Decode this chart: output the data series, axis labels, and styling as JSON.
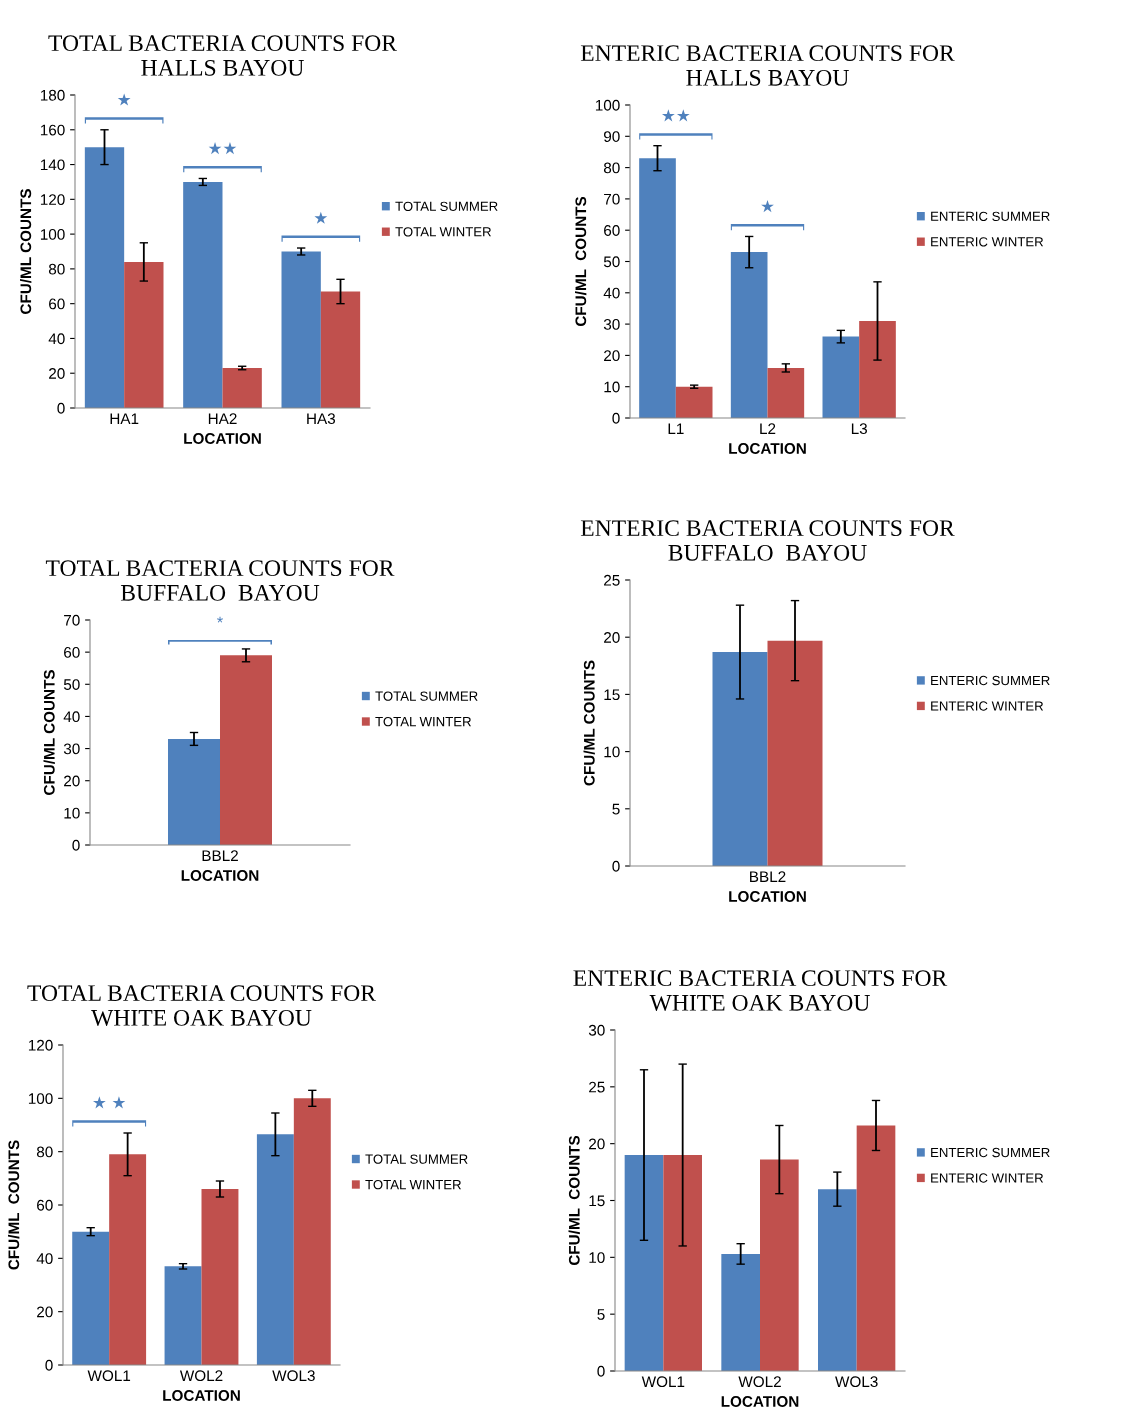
{
  "chart_data": [
    {
      "type": "bar",
      "title": "TOTAL BACTERIA COUNTS FOR\nHALLS BAYOU",
      "xlabel": "LOCATION",
      "ylabel": "CFU/ML COUNTS",
      "categories": [
        "HA1",
        "HA2",
        "HA3"
      ],
      "series": [
        {
          "name": "TOTAL SUMMER",
          "color": "#4f81bd",
          "values": [
            150,
            130,
            90
          ],
          "errors": [
            10,
            2,
            2
          ]
        },
        {
          "name": "TOTAL WINTER",
          "color": "#c0504d",
          "values": [
            84,
            23,
            67
          ],
          "errors": [
            11,
            1,
            7
          ]
        }
      ],
      "ylim": [
        0,
        180
      ],
      "yticks": [
        0,
        20,
        40,
        60,
        80,
        100,
        120,
        140,
        160,
        180
      ],
      "legend": "right",
      "grid": false,
      "annotations": [
        "★",
        "★★",
        "★"
      ]
    },
    {
      "type": "bar",
      "title": "ENTERIC BACTERIA COUNTS FOR\nHALLS BAYOU",
      "xlabel": "LOCATION",
      "ylabel": "CFU/ML  COUNTS",
      "categories": [
        "L1",
        "L2",
        "L3"
      ],
      "series": [
        {
          "name": "ENTERIC SUMMER",
          "color": "#4f81bd",
          "values": [
            83,
            53,
            26
          ],
          "errors": [
            4,
            5,
            2
          ]
        },
        {
          "name": "ENTERIC WINTER",
          "color": "#c0504d",
          "values": [
            10,
            16,
            31
          ],
          "errors": [
            0.5,
            1.3,
            12.5
          ]
        }
      ],
      "ylim": [
        0,
        100
      ],
      "yticks": [
        0,
        10,
        20,
        30,
        40,
        50,
        60,
        70,
        80,
        90,
        100
      ],
      "legend": "right",
      "grid": false,
      "annotations": [
        "★★",
        "★"
      ]
    },
    {
      "type": "bar",
      "title": "TOTAL BACTERIA COUNTS FOR\nBUFFALO  BAYOU",
      "xlabel": "LOCATION",
      "ylabel": "CFU/ML COUNTS",
      "categories": [
        "BBL2"
      ],
      "series": [
        {
          "name": "TOTAL SUMMER",
          "color": "#4f81bd",
          "values": [
            33
          ],
          "errors": [
            2
          ]
        },
        {
          "name": "TOTAL WINTER",
          "color": "#c0504d",
          "values": [
            59
          ],
          "errors": [
            2
          ]
        }
      ],
      "ylim": [
        0,
        70
      ],
      "yticks": [
        0,
        10,
        20,
        30,
        40,
        50,
        60,
        70
      ],
      "legend": "right",
      "grid": false,
      "annotations": [
        "*"
      ]
    },
    {
      "type": "bar",
      "title": "ENTERIC BACTERIA COUNTS FOR\nBUFFALO  BAYOU",
      "xlabel": "LOCATION",
      "ylabel": "CFU/ML COUNTS",
      "categories": [
        "BBL2"
      ],
      "series": [
        {
          "name": "ENTERIC SUMMER",
          "color": "#4f81bd",
          "values": [
            18.7
          ],
          "errors": [
            4.1
          ]
        },
        {
          "name": "ENTERIC WINTER",
          "color": "#c0504d",
          "values": [
            19.7
          ],
          "errors": [
            3.5
          ]
        }
      ],
      "ylim": [
        0,
        25
      ],
      "yticks": [
        0,
        5,
        10,
        15,
        20,
        25
      ],
      "legend": "right",
      "grid": false
    },
    {
      "type": "bar",
      "title": "TOTAL BACTERIA COUNTS FOR\nWHITE OAK BAYOU",
      "xlabel": "LOCATION",
      "ylabel": "CFU/ML  COUNTS",
      "categories": [
        "WOL1",
        "WOL2",
        "WOL3"
      ],
      "series": [
        {
          "name": "TOTAL SUMMER",
          "color": "#4f81bd",
          "values": [
            50,
            37,
            86.5
          ],
          "errors": [
            1.5,
            1,
            8
          ]
        },
        {
          "name": "TOTAL WINTER",
          "color": "#c0504d",
          "values": [
            79,
            66,
            100
          ],
          "errors": [
            8,
            3,
            3
          ]
        }
      ],
      "ylim": [
        0,
        120
      ],
      "yticks": [
        0,
        20,
        40,
        60,
        80,
        100,
        120
      ],
      "legend": "right",
      "grid": false,
      "annotations": [
        "★ ★"
      ]
    },
    {
      "type": "bar",
      "title": "ENTERIC BACTERIA COUNTS FOR\nWHITE OAK BAYOU",
      "xlabel": "LOCATION",
      "ylabel": "CFU/ML  COUNTS",
      "categories": [
        "WOL1",
        "WOL2",
        "WOL3"
      ],
      "series": [
        {
          "name": "ENTERIC SUMMER",
          "color": "#4f81bd",
          "values": [
            19,
            10.3,
            16
          ],
          "errors": [
            7.5,
            0.9,
            1.5
          ]
        },
        {
          "name": "ENTERIC WINTER",
          "color": "#c0504d",
          "values": [
            19,
            18.6,
            21.6
          ],
          "errors": [
            8,
            3,
            2.2
          ]
        }
      ],
      "ylim": [
        0,
        30
      ],
      "yticks": [
        0,
        5,
        10,
        15,
        20,
        25,
        30
      ],
      "legend": "right",
      "grid": false
    }
  ]
}
